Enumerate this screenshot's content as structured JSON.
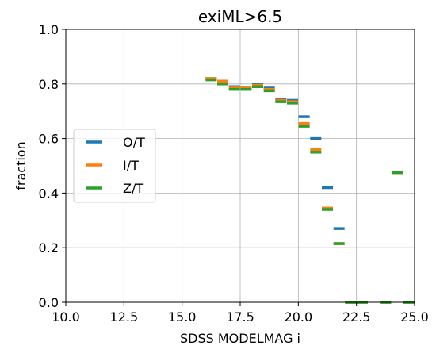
{
  "chart_data": {
    "type": "scatter",
    "title": "exiML>6.5",
    "xlabel": "SDSS MODELMAG i",
    "ylabel": "fraction",
    "xlim": [
      10.0,
      25.0
    ],
    "ylim": [
      0.0,
      1.0
    ],
    "xticks": [
      10.0,
      12.5,
      15.0,
      17.5,
      20.0,
      22.5,
      25.0
    ],
    "xtick_labels": [
      "10.0",
      "12.5",
      "15.0",
      "17.5",
      "20.0",
      "22.5",
      "25.0"
    ],
    "yticks": [
      0.0,
      0.2,
      0.4,
      0.6,
      0.8,
      1.0
    ],
    "ytick_labels": [
      "0.0",
      "0.2",
      "0.4",
      "0.6",
      "0.8",
      "1.0"
    ],
    "grid": true,
    "legend_position": "center-left",
    "marker": "horizontal-dash",
    "x": [
      16.25,
      16.75,
      17.25,
      17.75,
      18.25,
      18.75,
      19.25,
      19.75,
      20.25,
      20.75,
      21.25,
      21.75,
      22.25,
      22.75,
      23.25,
      23.75,
      24.25,
      24.75
    ],
    "series": [
      {
        "name": "O/T",
        "color": "#1f77b4",
        "values": [
          0.82,
          0.81,
          0.79,
          0.785,
          0.8,
          0.785,
          0.745,
          0.74,
          0.68,
          0.6,
          0.42,
          0.27,
          0.0,
          0.0,
          null,
          0.0,
          null,
          0.0
        ]
      },
      {
        "name": "I/T",
        "color": "#ff7f0e",
        "values": [
          0.82,
          0.81,
          0.785,
          0.785,
          0.795,
          0.78,
          0.74,
          0.735,
          0.655,
          0.56,
          0.345,
          0.215,
          0.0,
          0.0,
          null,
          0.0,
          0.475,
          0.0
        ]
      },
      {
        "name": "Z/T",
        "color": "#2ca02c",
        "values": [
          0.815,
          0.8,
          0.78,
          0.78,
          0.79,
          0.775,
          0.735,
          0.73,
          0.645,
          0.55,
          0.34,
          0.215,
          0.0,
          0.0,
          null,
          0.0,
          0.475,
          0.0
        ]
      }
    ]
  }
}
